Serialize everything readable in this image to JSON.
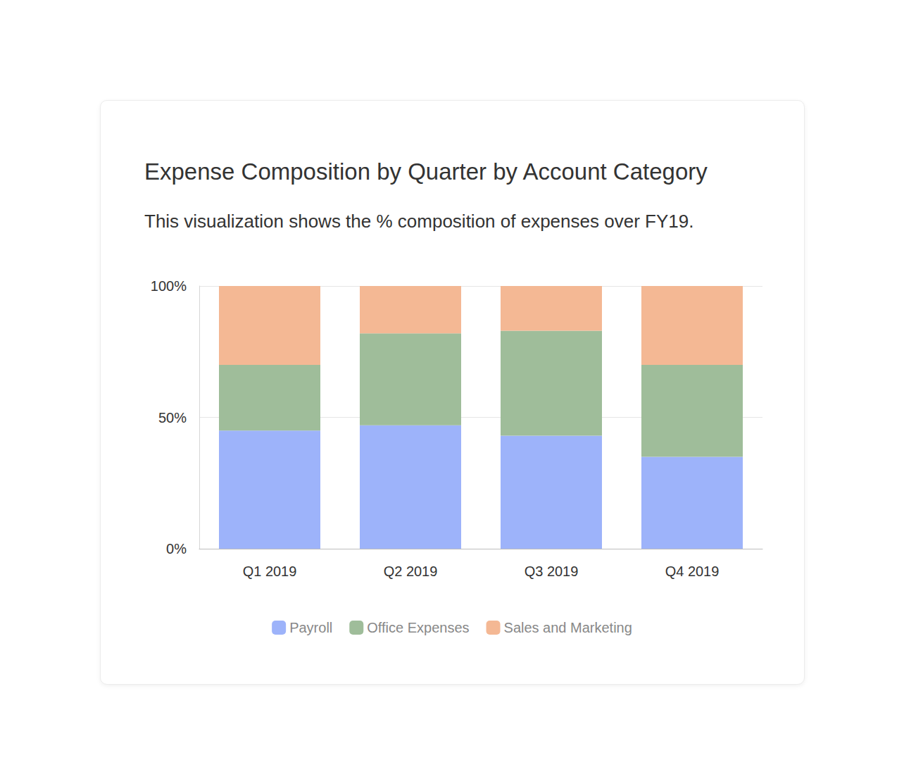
{
  "chart_data": {
    "type": "bar",
    "title": "Expense Composition by Quarter by Account Category",
    "subtitle": "This visualization shows the % composition of expenses over FY19.",
    "categories": [
      "Q1 2019",
      "Q2 2019",
      "Q3 2019",
      "Q4 2019"
    ],
    "series": [
      {
        "name": "Payroll",
        "color": "#9db3fa",
        "values": [
          45,
          47,
          43,
          35
        ]
      },
      {
        "name": "Office Expenses",
        "color": "#9fbd9a",
        "values": [
          25,
          35,
          40,
          35
        ]
      },
      {
        "name": "Sales and Marketing",
        "color": "#f4b894",
        "values": [
          30,
          18,
          17,
          30
        ]
      }
    ],
    "ylim": [
      0,
      100
    ],
    "yticks": [
      {
        "value": 0,
        "label": "0%"
      },
      {
        "value": 50,
        "label": "50%"
      },
      {
        "value": 100,
        "label": "100%"
      }
    ],
    "stacked": true,
    "grid": true,
    "legend": "bottom"
  }
}
